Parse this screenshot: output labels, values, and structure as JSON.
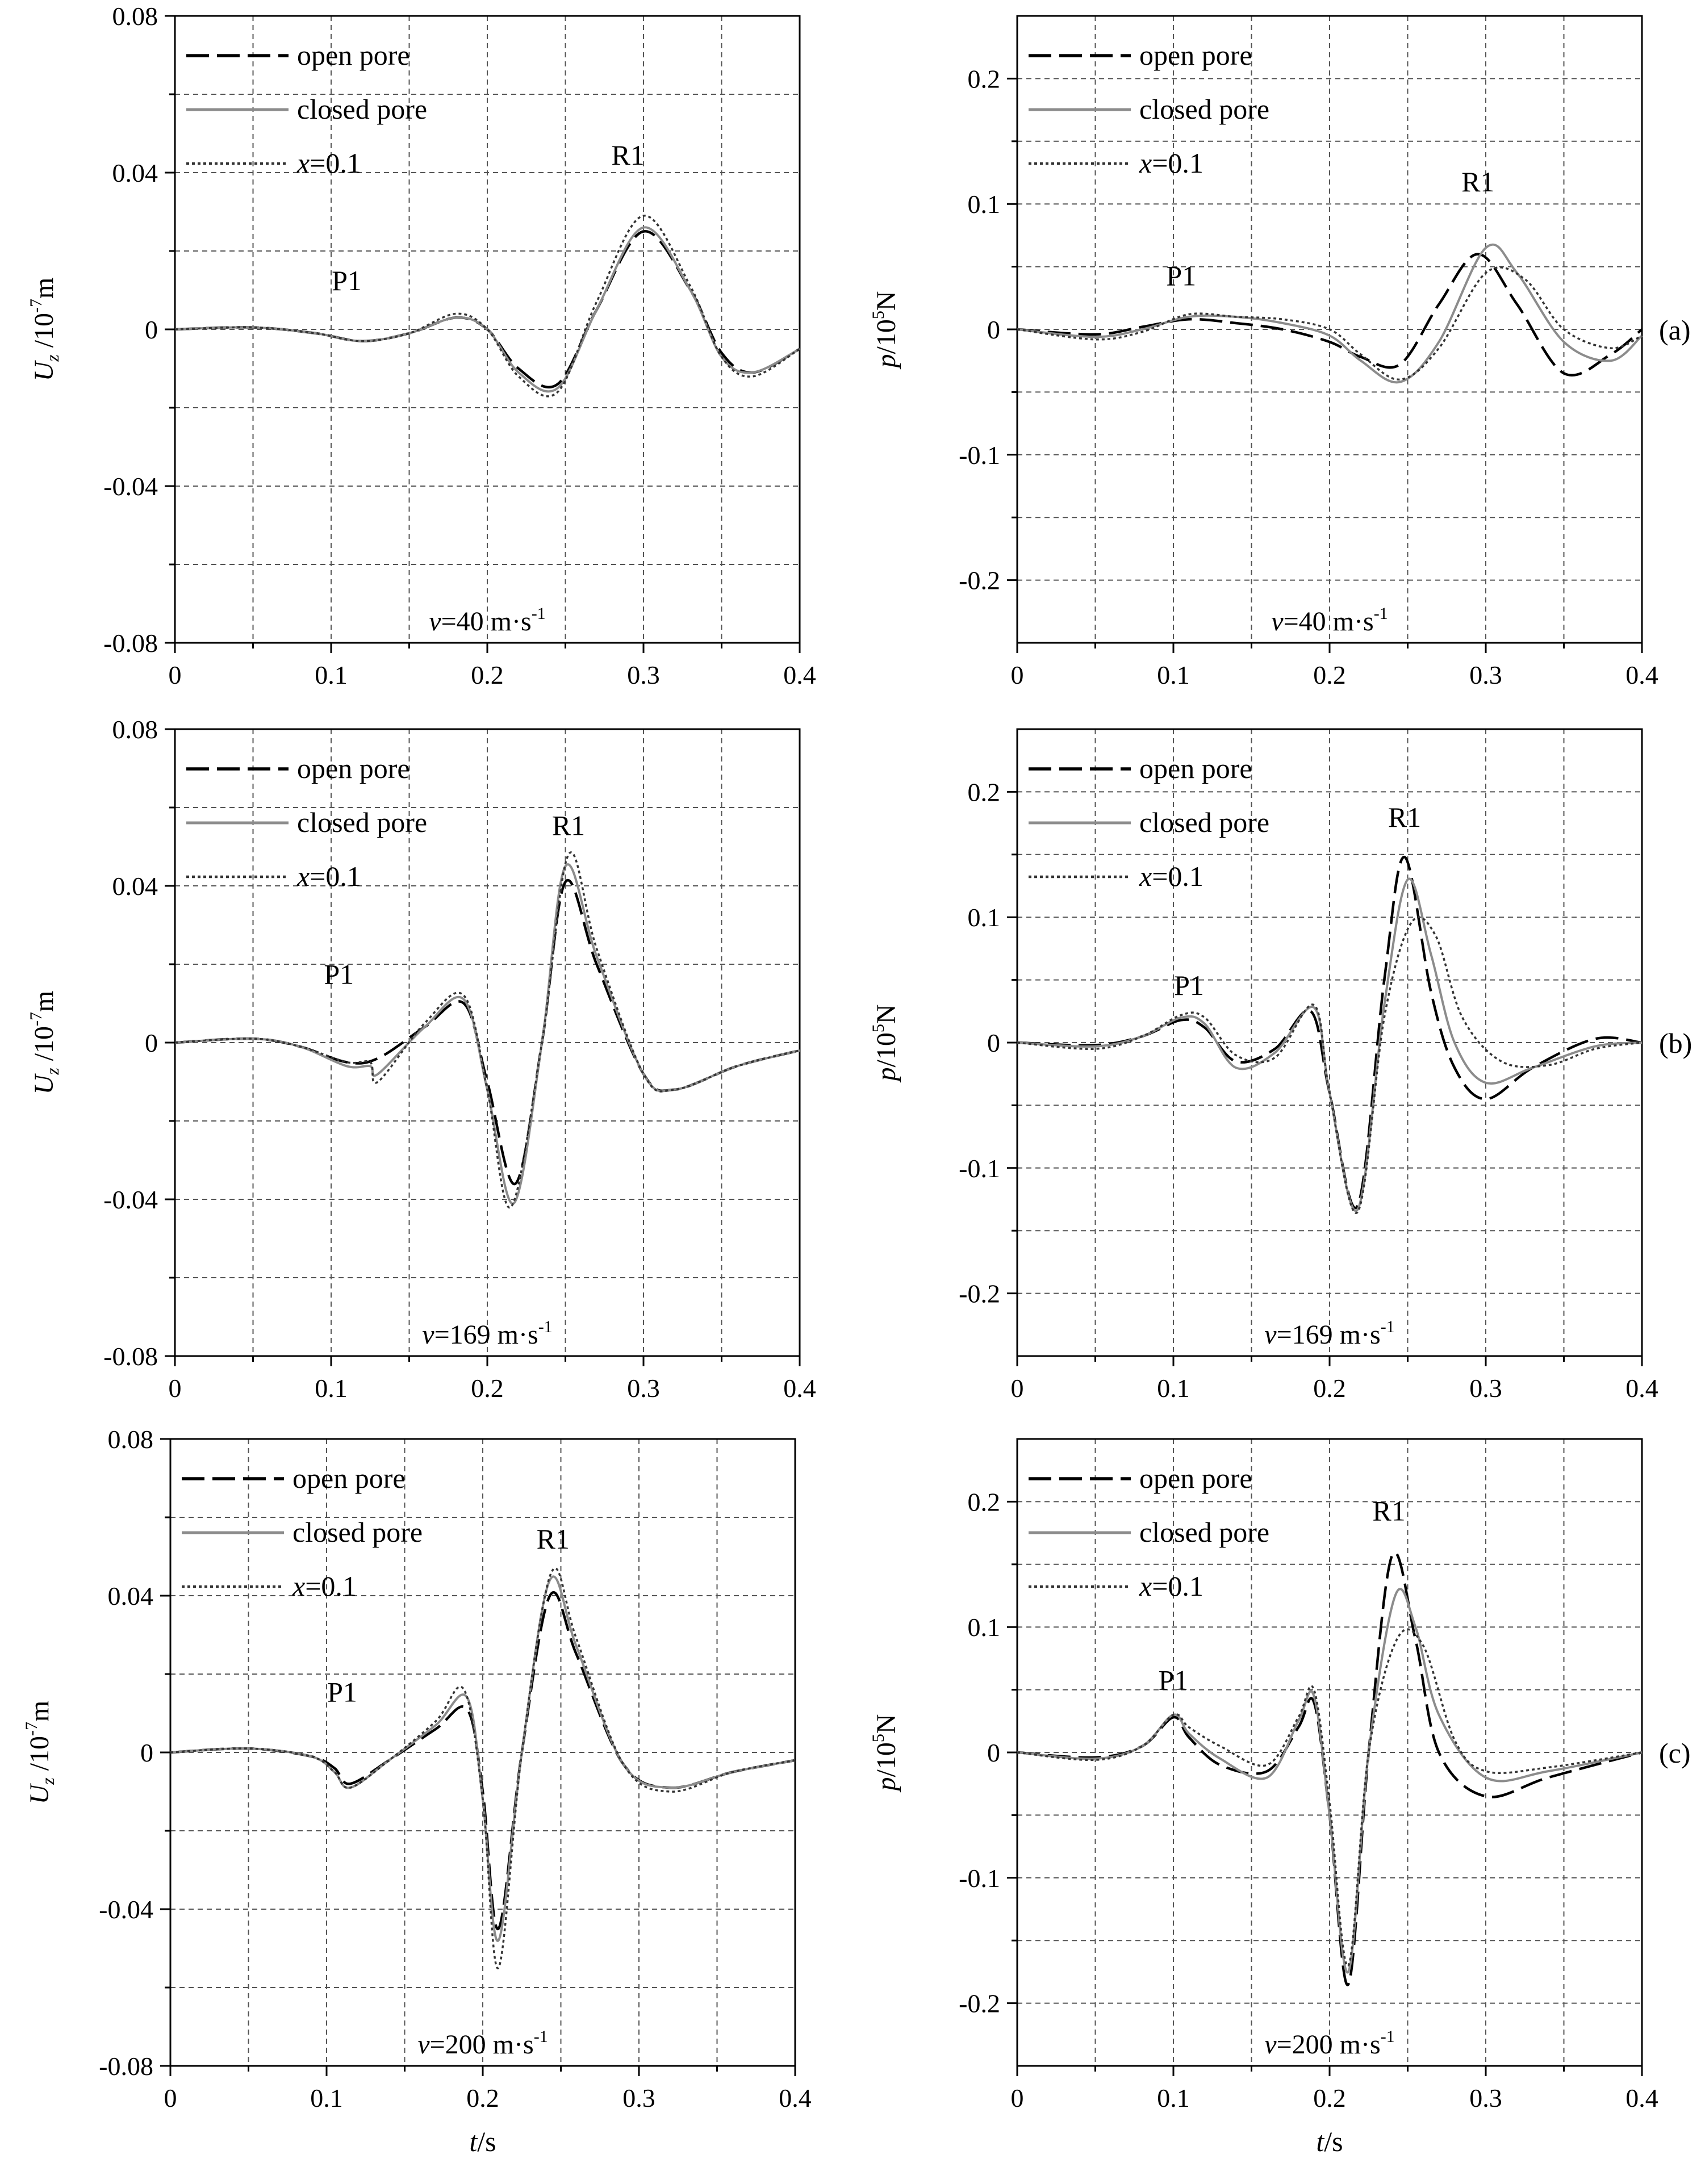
{
  "figure": {
    "panel_labels": [
      "(a)",
      "(b)",
      "(c)"
    ],
    "legend_entries": [
      {
        "key": "open",
        "label": "open pore",
        "color": "#000000",
        "dash": "long"
      },
      {
        "key": "closed",
        "label": "closed pore",
        "color": "#8c8c8c",
        "dash": "solid"
      },
      {
        "key": "x01",
        "label_italic": "x",
        "label_rest": "=0.1",
        "color": "#333333",
        "dash": "dotted"
      }
    ],
    "x_axis_label_italic": "t",
    "x_axis_label_rest": "/s"
  },
  "chart_data": [
    {
      "id": "a-left",
      "type": "line",
      "ylabel_italic": "U",
      "ylabel_sub": "z",
      "ylabel_rest": " /10",
      "ylabel_sup": "-7",
      "ylabel_unit": "m",
      "xlim": [
        0,
        0.4
      ],
      "ylim": [
        -0.08,
        0.08
      ],
      "xticks": [
        0,
        0.1,
        0.2,
        0.3,
        0.4
      ],
      "xticklabels": [
        "0",
        "0.1",
        "0.2",
        "0.3",
        "0.4"
      ],
      "yticks": [
        -0.08,
        -0.04,
        0,
        0.04,
        0.08
      ],
      "yticklabels": [
        "-0.08",
        "-0.04",
        "0",
        "0.04",
        "0.08"
      ],
      "grid": true,
      "speed_label_italic": "v",
      "speed_label_value": "=40 m·s",
      "speed_label_sup": "-1",
      "annotations": [
        {
          "text": "P1",
          "x": 0.11,
          "y": 0.01
        },
        {
          "text": "R1",
          "x": 0.29,
          "y": 0.042
        }
      ],
      "series": [
        {
          "key": "open",
          "x": [
            0,
            0.05,
            0.09,
            0.12,
            0.15,
            0.18,
            0.2,
            0.22,
            0.245,
            0.27,
            0.3,
            0.33,
            0.35,
            0.37,
            0.4
          ],
          "y": [
            0,
            0.0005,
            -0.001,
            -0.003,
            -0.001,
            0.003,
            0,
            -0.01,
            -0.014,
            0.005,
            0.025,
            0.01,
            -0.006,
            -0.011,
            -0.005
          ]
        },
        {
          "key": "closed",
          "x": [
            0,
            0.05,
            0.09,
            0.12,
            0.15,
            0.18,
            0.2,
            0.22,
            0.245,
            0.27,
            0.3,
            0.33,
            0.35,
            0.37,
            0.4
          ],
          "y": [
            0,
            0.0005,
            -0.001,
            -0.003,
            -0.001,
            0.003,
            0,
            -0.011,
            -0.015,
            0.005,
            0.026,
            0.01,
            -0.007,
            -0.011,
            -0.005
          ]
        },
        {
          "key": "x01",
          "x": [
            0,
            0.05,
            0.09,
            0.12,
            0.15,
            0.18,
            0.2,
            0.22,
            0.245,
            0.27,
            0.3,
            0.33,
            0.35,
            0.37,
            0.4
          ],
          "y": [
            0,
            0.0005,
            -0.001,
            -0.003,
            -0.001,
            0.004,
            0,
            -0.012,
            -0.016,
            0.007,
            0.029,
            0.011,
            -0.007,
            -0.012,
            -0.005
          ]
        }
      ]
    },
    {
      "id": "a-right",
      "type": "line",
      "ylabel_italic": "p",
      "ylabel_rest": "/10",
      "ylabel_sup": "5",
      "ylabel_unit": "N",
      "xlim": [
        0,
        0.4
      ],
      "ylim": [
        -0.25,
        0.25
      ],
      "xticks": [
        0,
        0.1,
        0.2,
        0.3,
        0.4
      ],
      "xticklabels": [
        "0",
        "0.1",
        "0.2",
        "0.3",
        "0.4"
      ],
      "yticks": [
        -0.2,
        -0.1,
        0,
        0.1,
        0.2
      ],
      "yticklabels": [
        "-0.2",
        "-0.1",
        "0",
        "0.1",
        "0.2"
      ],
      "grid": true,
      "panel_label": "(a)",
      "speed_label_italic": "v",
      "speed_label_value": "=40 m·s",
      "speed_label_sup": "-1",
      "annotations": [
        {
          "text": "P1",
          "x": 0.105,
          "y": 0.035
        },
        {
          "text": "R1",
          "x": 0.295,
          "y": 0.11
        }
      ],
      "series": [
        {
          "key": "open",
          "x": [
            0,
            0.05,
            0.08,
            0.11,
            0.14,
            0.17,
            0.2,
            0.22,
            0.245,
            0.27,
            0.295,
            0.32,
            0.35,
            0.38,
            0.4
          ],
          "y": [
            0,
            -0.004,
            0.002,
            0.008,
            0.005,
            0.0,
            -0.01,
            -0.022,
            -0.028,
            0.02,
            0.06,
            0.02,
            -0.035,
            -0.02,
            0
          ]
        },
        {
          "key": "closed",
          "x": [
            0,
            0.05,
            0.08,
            0.11,
            0.14,
            0.17,
            0.2,
            0.22,
            0.245,
            0.27,
            0.3,
            0.32,
            0.35,
            0.38,
            0.4
          ],
          "y": [
            0,
            -0.006,
            0.0,
            0.01,
            0.01,
            0.005,
            -0.005,
            -0.025,
            -0.042,
            -0.01,
            0.065,
            0.045,
            -0.01,
            -0.025,
            -0.005
          ]
        },
        {
          "key": "x01",
          "x": [
            0,
            0.05,
            0.08,
            0.11,
            0.14,
            0.17,
            0.2,
            0.22,
            0.245,
            0.27,
            0.3,
            0.325,
            0.35,
            0.38,
            0.4
          ],
          "y": [
            0,
            -0.008,
            -0.002,
            0.012,
            0.01,
            0.008,
            0.0,
            -0.02,
            -0.04,
            -0.015,
            0.045,
            0.04,
            0.0,
            -0.015,
            -0.005
          ]
        }
      ]
    },
    {
      "id": "b-left",
      "type": "line",
      "ylabel_italic": "U",
      "ylabel_sub": "z",
      "ylabel_rest": " /10",
      "ylabel_sup": "-7",
      "ylabel_unit": "m",
      "xlim": [
        0,
        0.4
      ],
      "ylim": [
        -0.08,
        0.08
      ],
      "xticks": [
        0,
        0.1,
        0.2,
        0.3,
        0.4
      ],
      "xticklabels": [
        "0",
        "0.1",
        "0.2",
        "0.3",
        "0.4"
      ],
      "yticks": [
        -0.08,
        -0.04,
        0,
        0.04,
        0.08
      ],
      "yticklabels": [
        "-0.08",
        "-0.04",
        "0",
        "0.04",
        "0.08"
      ],
      "grid": true,
      "speed_label_italic": "v",
      "speed_label_value": "=169 m·s",
      "speed_label_sup": "-1",
      "annotations": [
        {
          "text": "P1",
          "x": 0.105,
          "y": 0.015
        },
        {
          "text": "R1",
          "x": 0.252,
          "y": 0.053
        }
      ],
      "series": [
        {
          "key": "open",
          "x": [
            0,
            0.05,
            0.08,
            0.11,
            0.13,
            0.16,
            0.185,
            0.2,
            0.218,
            0.235,
            0.25,
            0.27,
            0.3,
            0.32,
            0.36,
            0.4
          ],
          "y": [
            0,
            0.001,
            -0.001,
            -0.005,
            -0.004,
            0.004,
            0.01,
            -0.01,
            -0.036,
            0.0,
            0.041,
            0.02,
            -0.008,
            -0.012,
            -0.006,
            -0.002
          ]
        },
        {
          "key": "closed",
          "x": [
            0,
            0.05,
            0.08,
            0.11,
            0.125,
            0.13,
            0.16,
            0.185,
            0.2,
            0.217,
            0.235,
            0.25,
            0.27,
            0.3,
            0.32,
            0.36,
            0.4
          ],
          "y": [
            0,
            0.001,
            -0.001,
            -0.006,
            -0.006,
            -0.008,
            0.004,
            0.011,
            -0.012,
            -0.041,
            0.0,
            0.045,
            0.022,
            -0.008,
            -0.012,
            -0.006,
            -0.002
          ]
        },
        {
          "key": "x01",
          "x": [
            0,
            0.05,
            0.08,
            0.11,
            0.125,
            0.13,
            0.16,
            0.185,
            0.2,
            0.215,
            0.235,
            0.252,
            0.27,
            0.3,
            0.32,
            0.36,
            0.4
          ],
          "y": [
            0,
            0.001,
            -0.001,
            -0.005,
            -0.005,
            -0.01,
            0.005,
            0.012,
            -0.012,
            -0.042,
            0.0,
            0.048,
            0.024,
            -0.008,
            -0.012,
            -0.006,
            -0.002
          ]
        }
      ]
    },
    {
      "id": "b-right",
      "type": "line",
      "ylabel_italic": "p",
      "ylabel_rest": "/10",
      "ylabel_sup": "5",
      "ylabel_unit": "N",
      "xlim": [
        0,
        0.4
      ],
      "ylim": [
        -0.25,
        0.25
      ],
      "xticks": [
        0,
        0.1,
        0.2,
        0.3,
        0.4
      ],
      "xticklabels": [
        "0",
        "0.1",
        "0.2",
        "0.3",
        "0.4"
      ],
      "yticks": [
        -0.2,
        -0.1,
        0,
        0.1,
        0.2
      ],
      "yticklabels": [
        "-0.2",
        "-0.1",
        "0",
        "0.1",
        "0.2"
      ],
      "grid": true,
      "panel_label": "(b)",
      "speed_label_italic": "v",
      "speed_label_value": "=169 m·s",
      "speed_label_sup": "-1",
      "annotations": [
        {
          "text": "P1",
          "x": 0.11,
          "y": 0.038
        },
        {
          "text": "R1",
          "x": 0.248,
          "y": 0.172
        }
      ],
      "series": [
        {
          "key": "open",
          "x": [
            0,
            0.05,
            0.08,
            0.105,
            0.12,
            0.14,
            0.165,
            0.188,
            0.2,
            0.218,
            0.235,
            0.248,
            0.265,
            0.28,
            0.3,
            0.33,
            0.37,
            0.4
          ],
          "y": [
            0,
            -0.002,
            0.005,
            0.018,
            0.012,
            -0.015,
            -0.005,
            0.025,
            -0.04,
            -0.13,
            0.05,
            0.148,
            0.04,
            -0.02,
            -0.045,
            -0.02,
            0.003,
            0
          ]
        },
        {
          "key": "closed",
          "x": [
            0,
            0.05,
            0.08,
            0.105,
            0.12,
            0.14,
            0.165,
            0.19,
            0.2,
            0.218,
            0.235,
            0.25,
            0.265,
            0.28,
            0.3,
            0.33,
            0.37,
            0.4
          ],
          "y": [
            0,
            -0.003,
            0.005,
            0.02,
            0.015,
            -0.02,
            -0.008,
            0.028,
            -0.04,
            -0.133,
            0.03,
            0.13,
            0.07,
            0.0,
            -0.032,
            -0.02,
            -0.003,
            0
          ]
        },
        {
          "key": "x01",
          "x": [
            0,
            0.05,
            0.08,
            0.105,
            0.12,
            0.14,
            0.165,
            0.19,
            0.2,
            0.218,
            0.235,
            0.252,
            0.268,
            0.285,
            0.31,
            0.34,
            0.37,
            0.4
          ],
          "y": [
            0,
            -0.005,
            0.005,
            0.022,
            0.02,
            -0.01,
            -0.012,
            0.03,
            -0.04,
            -0.135,
            0.02,
            0.095,
            0.085,
            0.02,
            -0.015,
            -0.018,
            -0.005,
            0
          ]
        }
      ]
    },
    {
      "id": "c-left",
      "type": "line",
      "ylabel_italic": "U",
      "ylabel_sub": "z",
      "ylabel_rest": " /10",
      "ylabel_sup": "-7",
      "ylabel_unit": "m",
      "xlim": [
        0,
        0.4
      ],
      "ylim": [
        -0.08,
        0.08
      ],
      "xticks": [
        0,
        0.1,
        0.2,
        0.3,
        0.4
      ],
      "xticklabels": [
        "0",
        "0.1",
        "0.2",
        "0.3",
        "0.4"
      ],
      "yticks": [
        -0.08,
        -0.04,
        0,
        0.04,
        0.08
      ],
      "yticklabels": [
        "-0.08",
        "-0.04",
        "0",
        "0.04",
        "0.08"
      ],
      "grid": true,
      "speed_label_italic": "v",
      "speed_label_value": "=200 m·s",
      "speed_label_sup": "-1",
      "annotations": [
        {
          "text": "P1",
          "x": 0.11,
          "y": 0.013
        },
        {
          "text": "R1",
          "x": 0.245,
          "y": 0.052
        }
      ],
      "series": [
        {
          "key": "open",
          "x": [
            0,
            0.05,
            0.09,
            0.105,
            0.115,
            0.14,
            0.17,
            0.19,
            0.2,
            0.21,
            0.225,
            0.243,
            0.26,
            0.29,
            0.32,
            0.36,
            0.4
          ],
          "y": [
            0,
            0.001,
            -0.001,
            -0.004,
            -0.008,
            -0.002,
            0.006,
            0.011,
            -0.01,
            -0.045,
            0.0,
            0.04,
            0.025,
            -0.003,
            -0.009,
            -0.005,
            -0.002
          ]
        },
        {
          "key": "closed",
          "x": [
            0,
            0.05,
            0.09,
            0.105,
            0.115,
            0.14,
            0.17,
            0.19,
            0.2,
            0.21,
            0.225,
            0.243,
            0.26,
            0.29,
            0.32,
            0.36,
            0.4
          ],
          "y": [
            0,
            0.001,
            -0.001,
            -0.005,
            -0.009,
            -0.002,
            0.007,
            0.014,
            -0.012,
            -0.048,
            0.0,
            0.044,
            0.027,
            -0.003,
            -0.009,
            -0.005,
            -0.002
          ]
        },
        {
          "key": "x01",
          "x": [
            0,
            0.05,
            0.09,
            0.105,
            0.115,
            0.14,
            0.17,
            0.188,
            0.2,
            0.21,
            0.225,
            0.244,
            0.26,
            0.29,
            0.32,
            0.36,
            0.4
          ],
          "y": [
            0,
            0.001,
            -0.001,
            -0.005,
            -0.009,
            -0.002,
            0.008,
            0.016,
            -0.012,
            -0.055,
            0.0,
            0.046,
            0.029,
            -0.003,
            -0.01,
            -0.005,
            -0.002
          ]
        }
      ]
    },
    {
      "id": "c-right",
      "type": "line",
      "ylabel_italic": "p",
      "ylabel_rest": "/10",
      "ylabel_sup": "5",
      "ylabel_unit": "N",
      "xlim": [
        0,
        0.4
      ],
      "ylim": [
        -0.25,
        0.25
      ],
      "xticks": [
        0,
        0.1,
        0.2,
        0.3,
        0.4
      ],
      "xticklabels": [
        "0",
        "0.1",
        "0.2",
        "0.3",
        "0.4"
      ],
      "yticks": [
        -0.2,
        -0.1,
        0,
        0.1,
        0.2
      ],
      "yticklabels": [
        "-0.2",
        "-0.1",
        "0",
        "0.1",
        "0.2"
      ],
      "grid": true,
      "panel_label": "(c)",
      "speed_label_italic": "v",
      "speed_label_value": "=200 m·s",
      "speed_label_sup": "-1",
      "annotations": [
        {
          "text": "P1",
          "x": 0.1,
          "y": 0.05
        },
        {
          "text": "R1",
          "x": 0.238,
          "y": 0.185
        }
      ],
      "series": [
        {
          "key": "open",
          "x": [
            0,
            0.05,
            0.08,
            0.1,
            0.11,
            0.13,
            0.16,
            0.18,
            0.19,
            0.2,
            0.212,
            0.225,
            0.24,
            0.255,
            0.27,
            0.3,
            0.34,
            0.4
          ],
          "y": [
            0,
            -0.004,
            0.005,
            0.028,
            0.012,
            -0.01,
            -0.015,
            0.02,
            0.04,
            -0.05,
            -0.185,
            0.0,
            0.157,
            0.09,
            0.0,
            -0.035,
            -0.02,
            0
          ]
        },
        {
          "key": "closed",
          "x": [
            0,
            0.05,
            0.08,
            0.1,
            0.11,
            0.13,
            0.16,
            0.18,
            0.19,
            0.2,
            0.212,
            0.225,
            0.242,
            0.255,
            0.27,
            0.3,
            0.34,
            0.4
          ],
          "y": [
            0,
            -0.005,
            0.005,
            0.03,
            0.015,
            -0.005,
            -0.02,
            0.025,
            0.045,
            -0.05,
            -0.175,
            0.0,
            0.125,
            0.1,
            0.03,
            -0.02,
            -0.015,
            0
          ]
        },
        {
          "key": "x01",
          "x": [
            0,
            0.05,
            0.08,
            0.1,
            0.11,
            0.13,
            0.16,
            0.18,
            0.19,
            0.2,
            0.212,
            0.225,
            0.243,
            0.26,
            0.28,
            0.3,
            0.34,
            0.4
          ],
          "y": [
            0,
            -0.006,
            0.005,
            0.03,
            0.02,
            0.005,
            -0.01,
            0.028,
            0.05,
            -0.04,
            -0.17,
            0.0,
            0.09,
            0.085,
            0.01,
            -0.015,
            -0.012,
            0
          ]
        }
      ]
    }
  ]
}
